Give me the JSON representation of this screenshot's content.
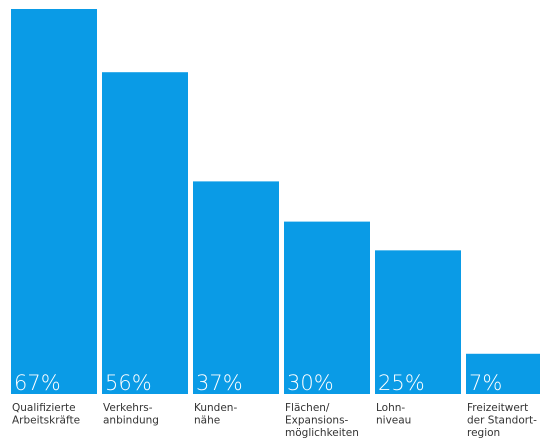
{
  "chart_data": {
    "type": "bar",
    "title": "",
    "xlabel": "",
    "ylabel": "",
    "ylim": [
      0,
      67
    ],
    "grid": false,
    "legend": "none",
    "bar_color": "#0a9be6",
    "label_color": "#333333",
    "value_label_color": "#ffffff",
    "categories": [
      [
        "Qualifizierte",
        "Arbeitskräfte"
      ],
      [
        "Verkehrs-",
        "anbindung"
      ],
      [
        "Kunden-",
        "nähe"
      ],
      [
        "Flächen/",
        "Expansions-",
        "möglichkeiten"
      ],
      [
        "Lohn-",
        "niveau"
      ],
      [
        "Freizeitwert",
        "der Standort-",
        "region"
      ]
    ],
    "values": [
      67,
      56,
      37,
      30,
      25,
      7
    ],
    "value_labels": [
      "67%",
      "56%",
      "37%",
      "30%",
      "25%",
      "7%"
    ]
  }
}
